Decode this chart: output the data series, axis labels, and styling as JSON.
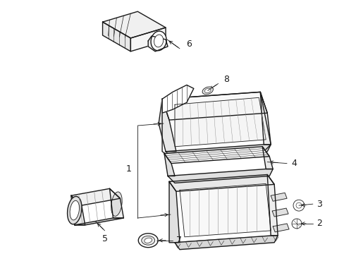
{
  "background_color": "#ffffff",
  "line_color": "#1a1a1a",
  "label_color": "#1a1a1a",
  "lw": 1.0,
  "tlw": 0.6,
  "fig_width": 4.89,
  "fig_height": 3.6,
  "dpi": 100
}
